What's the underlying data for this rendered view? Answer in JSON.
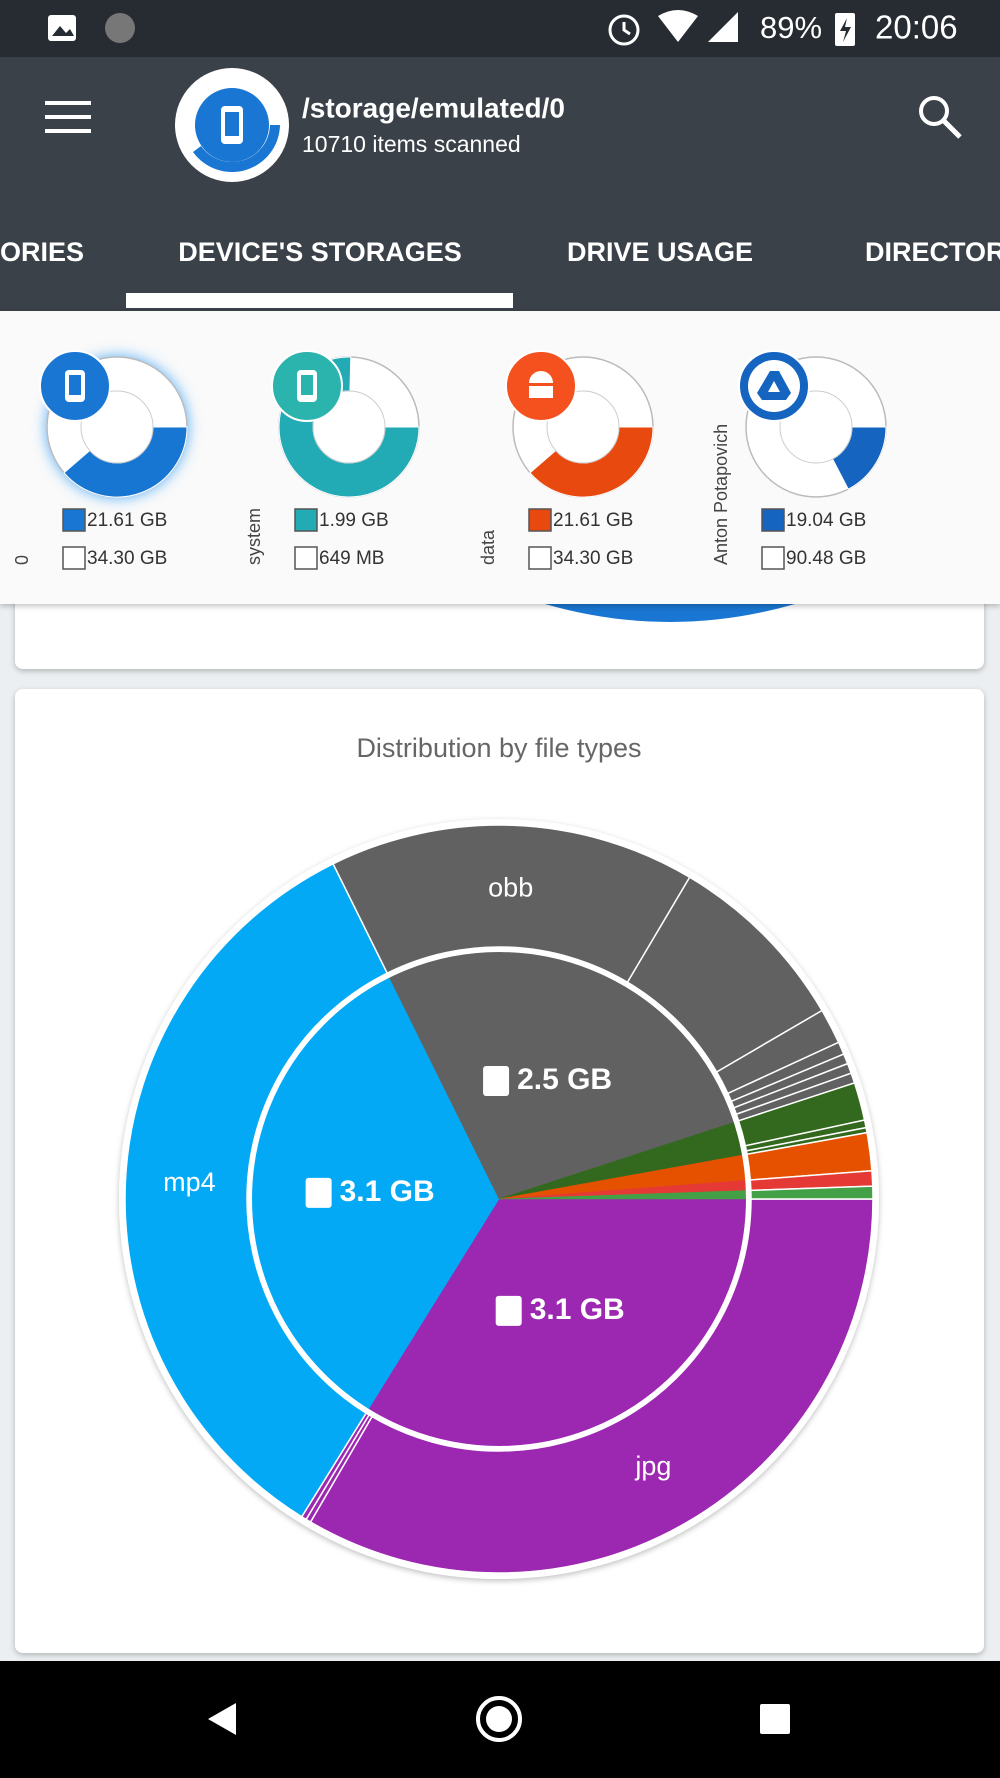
{
  "status_bar": {
    "battery": "89%",
    "time": "20:06"
  },
  "toolbar": {
    "title": "/storage/emulated/0",
    "subtitle": "10710 items scanned"
  },
  "tabs": [
    "ORIES",
    "DEVICE'S STORAGES",
    "DRIVE USAGE",
    "DIRECTOR"
  ],
  "storages": [
    {
      "name": "0",
      "color": "#1976d2",
      "badge": "#1976d2",
      "used": {
        "value": 21.61,
        "label": "21.61 GB"
      },
      "free": {
        "value": 34.3,
        "label": "34.30 GB"
      }
    },
    {
      "name": "system",
      "color": "#22abb5",
      "badge": "#2bb3ad",
      "used": {
        "value": 1.99,
        "label": "1.99 GB"
      },
      "free": {
        "value": 0.649,
        "label": "649 MB"
      }
    },
    {
      "name": "data",
      "color": "#e8490f",
      "badge": "#f4511e",
      "used": {
        "value": 21.61,
        "label": "21.61 GB"
      },
      "free": {
        "value": 34.3,
        "label": "34.30 GB"
      }
    },
    {
      "name": "Anton Potapovich",
      "color": "#1565c0",
      "badge": "#1565c0",
      "used": {
        "value": 19.04,
        "label": "19.04 GB"
      },
      "free": {
        "value": 90.48,
        "label": "90.48 GB"
      }
    }
  ],
  "file_types": {
    "title": "Distribution by file types",
    "segments": [
      {
        "label": "3.1 GB",
        "value": 3.1,
        "color": "#9c27b0",
        "children": [
          {
            "label": "jpg",
            "value": 3.06
          },
          {
            "value": 0.02
          },
          {
            "value": 0.02
          }
        ]
      },
      {
        "label": "3.1 GB",
        "value": 3.1,
        "color": "#03a9f4",
        "children": [
          {
            "label": "mp4",
            "value": 3.1
          }
        ]
      },
      {
        "label": "2.5 GB",
        "value": 2.5,
        "color": "#616161",
        "children": [
          {
            "label": "obb",
            "value": 1.45
          },
          {
            "value": 0.74
          },
          {
            "value": 0.14
          },
          {
            "value": 0.05
          },
          {
            "value": 0.04
          },
          {
            "value": 0.04
          },
          {
            "value": 0.04
          }
        ]
      },
      {
        "value": 0.2,
        "color": "#33691e",
        "children": [
          {
            "value": 0.15
          },
          {
            "value": 0.03
          },
          {
            "value": 0.02
          }
        ]
      },
      {
        "value": 0.15,
        "color": "#e65100",
        "children": [
          {
            "value": 0.15
          }
        ]
      },
      {
        "value": 0.06,
        "color": "#e53935",
        "children": [
          {
            "value": 0.06
          }
        ]
      },
      {
        "value": 0.05,
        "color": "#43a047",
        "children": [
          {
            "value": 0.05
          }
        ]
      }
    ]
  }
}
